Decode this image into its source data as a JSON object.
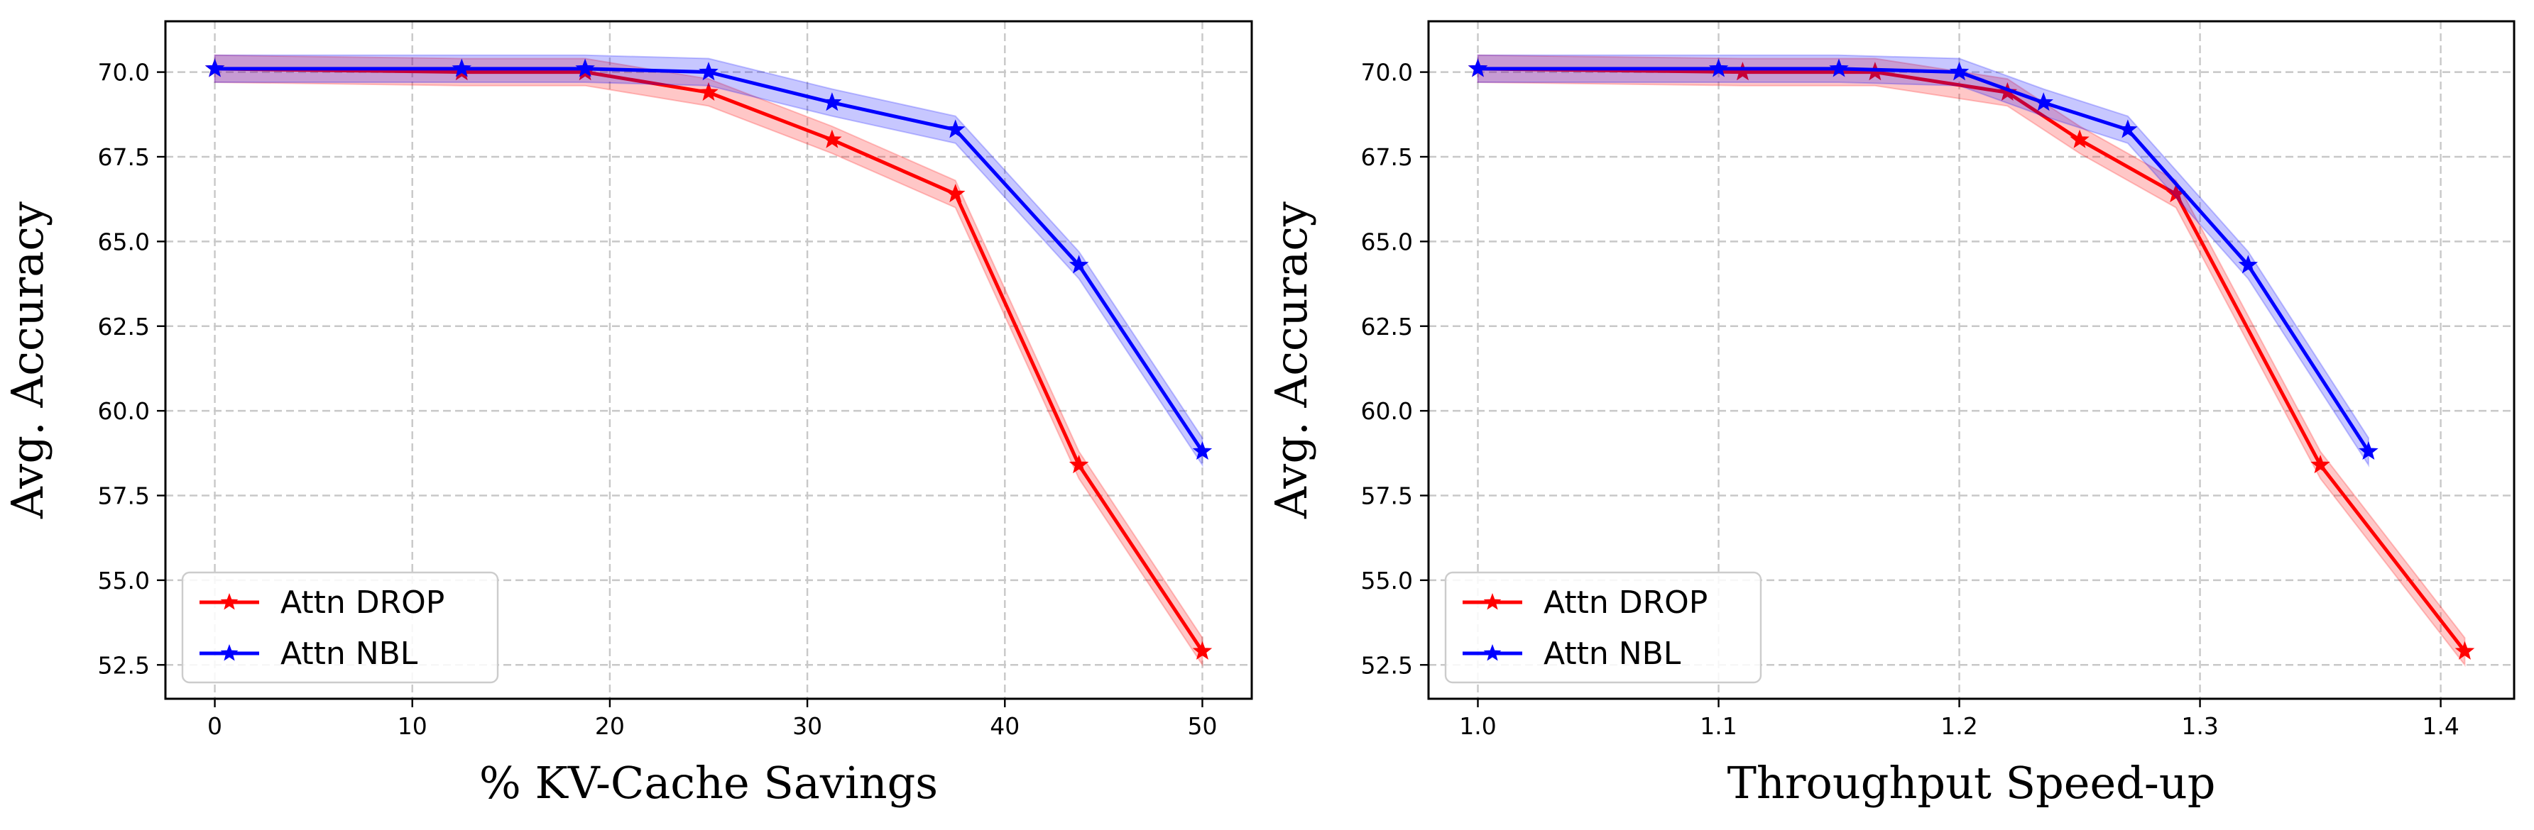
{
  "chart_data": [
    {
      "type": "line",
      "xlabel": "% KV-Cache Savings",
      "ylabel": "Avg. Accuracy",
      "xlim": [
        -2.5,
        52.5
      ],
      "ylim": [
        51.5,
        71.5
      ],
      "xticks": [
        0,
        10,
        20,
        30,
        40,
        50
      ],
      "xtick_labels": [
        "0",
        "10",
        "20",
        "30",
        "40",
        "50"
      ],
      "yticks": [
        52.5,
        55.0,
        57.5,
        60.0,
        62.5,
        65.0,
        67.5,
        70.0
      ],
      "ytick_labels": [
        "52.5",
        "55.0",
        "57.5",
        "60.0",
        "62.5",
        "65.0",
        "67.5",
        "70.0"
      ],
      "grid": true,
      "legend_position": "lower-left",
      "series": [
        {
          "name": "Attn DROP",
          "color": "#ff0000",
          "marker": "star",
          "x": [
            0,
            12.5,
            18.75,
            25,
            31.25,
            37.5,
            43.75,
            50
          ],
          "y": [
            70.1,
            70.0,
            70.0,
            69.4,
            68.0,
            66.4,
            58.4,
            52.9
          ],
          "band": 0.4
        },
        {
          "name": "Attn NBL",
          "color": "#0000ff",
          "marker": "star",
          "x": [
            0,
            12.5,
            18.75,
            25,
            31.25,
            37.5,
            43.75,
            50
          ],
          "y": [
            70.1,
            70.1,
            70.1,
            70.0,
            69.1,
            68.3,
            64.3,
            58.8
          ],
          "band": 0.4
        }
      ]
    },
    {
      "type": "line",
      "xlabel": "Throughput Speed-up",
      "ylabel": "Avg. Accuracy",
      "xlim": [
        0.9795,
        1.4305
      ],
      "ylim": [
        51.5,
        71.5
      ],
      "xticks": [
        1.0,
        1.1,
        1.2,
        1.3,
        1.4
      ],
      "xtick_labels": [
        "1.0",
        "1.1",
        "1.2",
        "1.3",
        "1.4"
      ],
      "yticks": [
        52.5,
        55.0,
        57.5,
        60.0,
        62.5,
        65.0,
        67.5,
        70.0
      ],
      "ytick_labels": [
        "52.5",
        "55.0",
        "57.5",
        "60.0",
        "62.5",
        "65.0",
        "67.5",
        "70.0"
      ],
      "grid": true,
      "legend_position": "lower-left",
      "series": [
        {
          "name": "Attn DROP",
          "color": "#ff0000",
          "marker": "star",
          "x": [
            1.0,
            1.11,
            1.165,
            1.22,
            1.25,
            1.29,
            1.35,
            1.41
          ],
          "y": [
            70.1,
            70.0,
            70.0,
            69.4,
            68.0,
            66.4,
            58.4,
            52.9
          ],
          "band": 0.4
        },
        {
          "name": "Attn NBL",
          "color": "#0000ff",
          "marker": "star",
          "x": [
            1.0,
            1.1,
            1.15,
            1.2,
            1.235,
            1.27,
            1.32,
            1.37
          ],
          "y": [
            70.1,
            70.1,
            70.1,
            70.0,
            69.1,
            68.3,
            64.3,
            58.8
          ],
          "band": 0.4
        }
      ]
    }
  ]
}
